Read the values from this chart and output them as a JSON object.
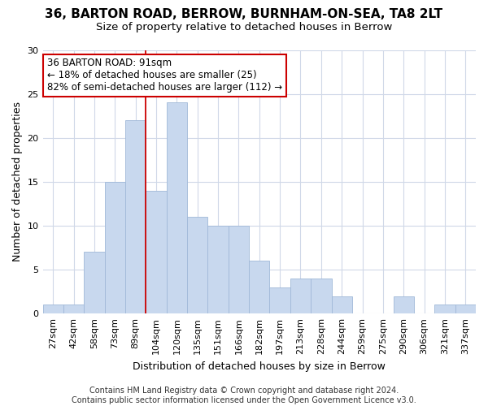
{
  "title": "36, BARTON ROAD, BERROW, BURNHAM-ON-SEA, TA8 2LT",
  "subtitle": "Size of property relative to detached houses in Berrow",
  "xlabel": "Distribution of detached houses by size in Berrow",
  "ylabel": "Number of detached properties",
  "categories": [
    "27sqm",
    "42sqm",
    "58sqm",
    "73sqm",
    "89sqm",
    "104sqm",
    "120sqm",
    "135sqm",
    "151sqm",
    "166sqm",
    "182sqm",
    "197sqm",
    "213sqm",
    "228sqm",
    "244sqm",
    "259sqm",
    "275sqm",
    "290sqm",
    "306sqm",
    "321sqm",
    "337sqm"
  ],
  "values": [
    1,
    1,
    7,
    15,
    22,
    14,
    24,
    11,
    10,
    10,
    6,
    3,
    4,
    4,
    2,
    0,
    0,
    2,
    0,
    1,
    1
  ],
  "bar_color": "#c8d8ee",
  "bar_edge_color": "#a0b8d8",
  "annotation_line1": "36 BARTON ROAD: 91sqm",
  "annotation_line2": "← 18% of detached houses are smaller (25)",
  "annotation_line3": "82% of semi-detached houses are larger (112) →",
  "annotation_box_color": "#ffffff",
  "annotation_box_edge_color": "#cc0000",
  "vline_color": "#cc0000",
  "vline_x": 4.5,
  "ylim": [
    0,
    30
  ],
  "yticks": [
    0,
    5,
    10,
    15,
    20,
    25,
    30
  ],
  "footer": "Contains HM Land Registry data © Crown copyright and database right 2024.\nContains public sector information licensed under the Open Government Licence v3.0.",
  "bg_color": "#ffffff",
  "plot_bg_color": "#ffffff",
  "grid_color": "#d0d8e8",
  "title_fontsize": 11,
  "subtitle_fontsize": 9.5,
  "tick_fontsize": 8,
  "ylabel_fontsize": 9,
  "xlabel_fontsize": 9,
  "footer_fontsize": 7,
  "annotation_fontsize": 8.5
}
